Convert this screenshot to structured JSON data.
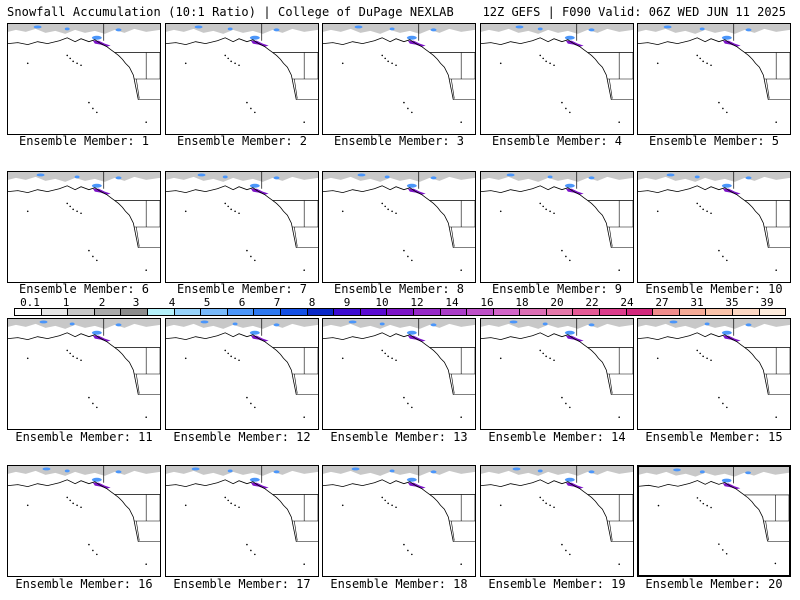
{
  "header": {
    "title": "Snowfall Accumulation (10:1 Ratio) | College of DuPage NEXLAB",
    "run_info": "12Z GEFS | F090 Valid: 06Z WED JUN 11 2025"
  },
  "members": [
    {
      "label": "Ensemble Member: 1"
    },
    {
      "label": "Ensemble Member: 2"
    },
    {
      "label": "Ensemble Member: 3"
    },
    {
      "label": "Ensemble Member: 4"
    },
    {
      "label": "Ensemble Member: 5"
    },
    {
      "label": "Ensemble Member: 6"
    },
    {
      "label": "Ensemble Member: 7"
    },
    {
      "label": "Ensemble Member: 8"
    },
    {
      "label": "Ensemble Member: 9"
    },
    {
      "label": "Ensemble Member: 10"
    },
    {
      "label": "Ensemble Member: 11"
    },
    {
      "label": "Ensemble Member: 12"
    },
    {
      "label": "Ensemble Member: 13"
    },
    {
      "label": "Ensemble Member: 14"
    },
    {
      "label": "Ensemble Member: 15"
    },
    {
      "label": "Ensemble Member: 16"
    },
    {
      "label": "Ensemble Member: 17"
    },
    {
      "label": "Ensemble Member: 18"
    },
    {
      "label": "Ensemble Member: 19"
    },
    {
      "label": "Ensemble Member: 20"
    }
  ],
  "colorbar": {
    "labels": [
      "0.1",
      "1",
      "2",
      "3",
      "4",
      "5",
      "6",
      "7",
      "8",
      "9",
      "10",
      "12",
      "14",
      "16",
      "18",
      "20",
      "22",
      "24",
      "27",
      "31",
      "35",
      "39"
    ],
    "colors": [
      "#ffffff",
      "#e6e6e6",
      "#c8c8c8",
      "#aaaaaa",
      "#8c8c8c",
      "#b4f0fa",
      "#96d2fa",
      "#78b9fa",
      "#4b96fa",
      "#2d78f0",
      "#1450e6",
      "#0a28c8",
      "#3c0ad2",
      "#5a0ad2",
      "#7d14c8",
      "#9628c8",
      "#aa3cc8",
      "#be50c8",
      "#d264c8",
      "#dc6eb4",
      "#e678aa",
      "#e65a96",
      "#dc3c8c",
      "#d2287d",
      "#f08c8c",
      "#f5aa96",
      "#fac3aa",
      "#fcd7c3",
      "#fdebdc"
    ]
  },
  "map_colors": {
    "snow_gray": "#c8c8c8",
    "snow_blue": "#4b96fa",
    "snow_purple": "#7d14c8"
  }
}
